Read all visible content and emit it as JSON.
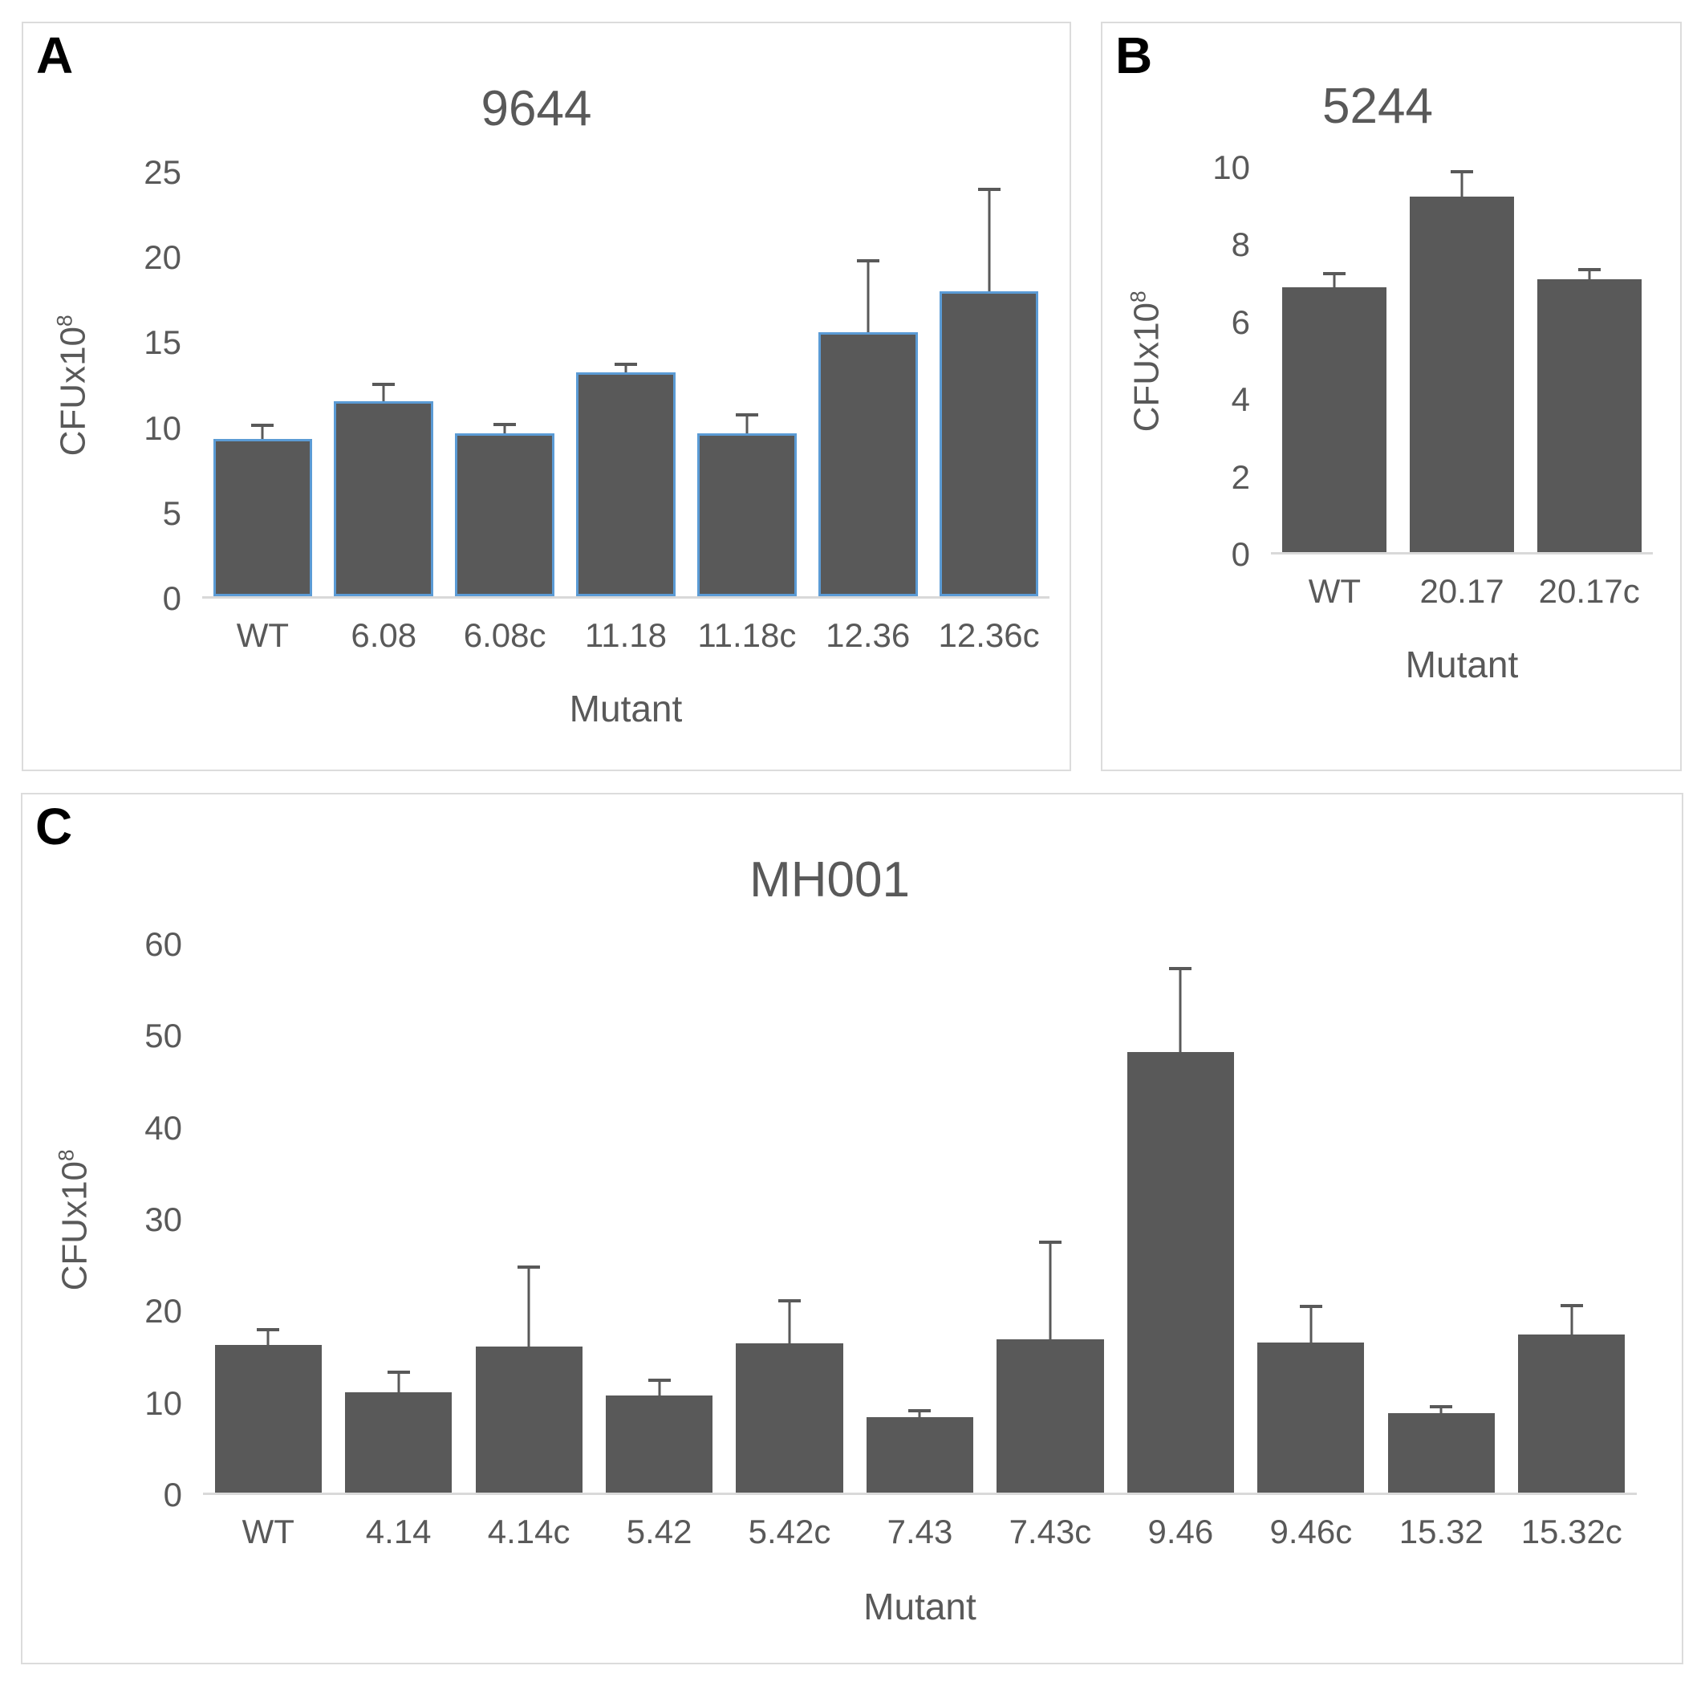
{
  "figure": {
    "background": "#ffffff",
    "panel_border_color": "#dcdcdc",
    "text_color": "#595959",
    "axis_line_color": "#d9d9d9",
    "error_bar_color": "#595959"
  },
  "chart_data": [
    {
      "panel_label": "A",
      "type": "bar",
      "title": "9644",
      "xlabel": "Mutant",
      "ylabel_base": "CFUx10",
      "ylabel_exp": "8",
      "categories": [
        "WT",
        "6.08",
        "6.08c",
        "11.18",
        "11.18c",
        "12.36",
        "12.36c"
      ],
      "values": [
        9.3,
        11.5,
        9.6,
        13.2,
        9.6,
        15.6,
        18.0
      ],
      "errors_plus": [
        0.8,
        1.0,
        0.55,
        0.5,
        1.1,
        4.2,
        6.0
      ],
      "yticks": [
        0,
        5,
        10,
        15,
        20,
        25
      ],
      "ylim": [
        0,
        25
      ],
      "bar_color": "#595959",
      "bar_outline": "#5B9BD5",
      "grid": "off",
      "legend": "none"
    },
    {
      "panel_label": "B",
      "type": "bar",
      "title": "5244",
      "xlabel": "Mutant",
      "ylabel_base": "CFUx10",
      "ylabel_exp": "8",
      "categories": [
        "WT",
        "20.17",
        "20.17c"
      ],
      "values": [
        6.9,
        9.25,
        7.1
      ],
      "errors_plus": [
        0.35,
        0.65,
        0.25
      ],
      "yticks": [
        0,
        2,
        4,
        6,
        8,
        10
      ],
      "ylim": [
        0,
        10
      ],
      "bar_color": "#595959",
      "bar_outline": null,
      "grid": "off",
      "legend": "none"
    },
    {
      "panel_label": "C",
      "type": "bar",
      "title": "MH001",
      "xlabel": "Mutant",
      "ylabel_base": "CFUx10",
      "ylabel_exp": "8",
      "categories": [
        "WT",
        "4.14",
        "4.14c",
        "5.42",
        "5.42c",
        "7.43",
        "7.43c",
        "9.46",
        "9.46c",
        "15.32",
        "15.32c"
      ],
      "values": [
        16.2,
        11.0,
        16.0,
        10.6,
        16.3,
        8.3,
        16.8,
        48.2,
        16.4,
        8.7,
        17.3
      ],
      "errors_plus": [
        1.6,
        2.2,
        8.7,
        1.7,
        4.7,
        0.7,
        10.6,
        9.2,
        4.0,
        0.7,
        3.2
      ],
      "yticks": [
        0,
        10,
        20,
        30,
        40,
        50,
        60
      ],
      "ylim": [
        0,
        60
      ],
      "bar_color": "#595959",
      "bar_outline": null,
      "grid": "off",
      "legend": "none"
    }
  ]
}
